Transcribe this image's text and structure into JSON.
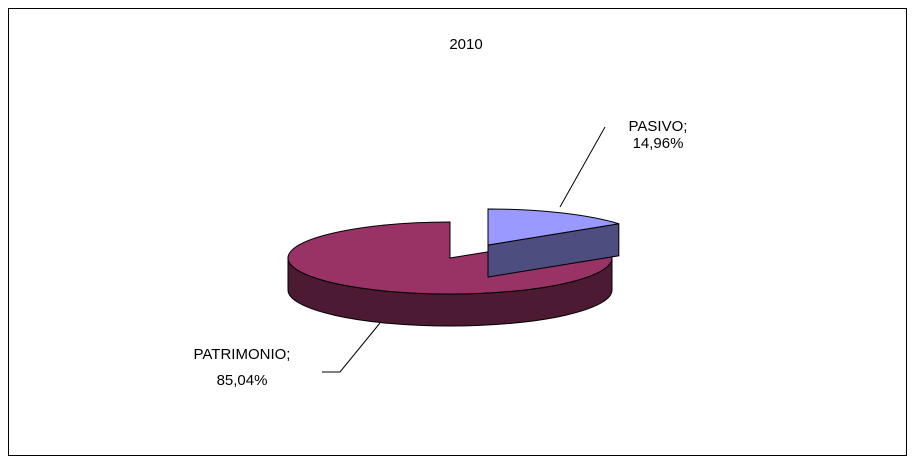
{
  "chart_data": {
    "type": "pie",
    "title": "2010",
    "categories": [
      "PASIVO;",
      "PATRIMONIO;"
    ],
    "values": [
      14.96,
      85.04
    ],
    "value_labels": [
      "14,96%",
      "85,04%"
    ],
    "colors": [
      "#9999ff",
      "#993366"
    ]
  }
}
